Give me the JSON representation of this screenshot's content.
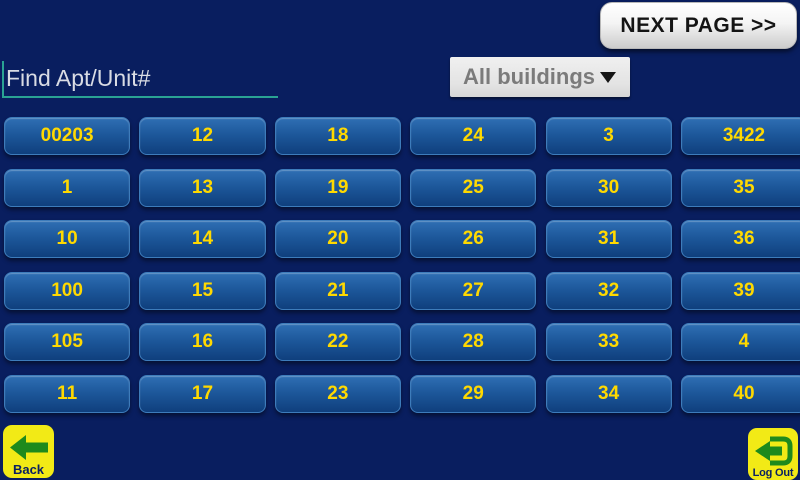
{
  "header": {
    "next_page_label": "NEXT PAGE >>",
    "search_placeholder": "Find Apt/Unit#",
    "building_filter_selected": "All buildings"
  },
  "grid": {
    "rows": [
      [
        "00203",
        "12",
        "18",
        "24",
        "3",
        "3422"
      ],
      [
        "1",
        "13",
        "19",
        "25",
        "30",
        "35"
      ],
      [
        "10",
        "14",
        "20",
        "26",
        "31",
        "36"
      ],
      [
        "100",
        "15",
        "21",
        "27",
        "32",
        "39"
      ],
      [
        "105",
        "16",
        "22",
        "28",
        "33",
        "4"
      ],
      [
        "11",
        "17",
        "23",
        "29",
        "34",
        "40"
      ]
    ]
  },
  "footer": {
    "back_label": "Back",
    "logout_label": "Log Out"
  },
  "colors": {
    "background": "#091e5f",
    "button_text": "#ffd900",
    "button_blue_top": "#2f6fb4",
    "button_blue_bottom": "#0f3f7d",
    "accent_teal": "#2aa393",
    "corner_yellow": "#f2ea16",
    "icon_green": "#1e8a1c"
  }
}
